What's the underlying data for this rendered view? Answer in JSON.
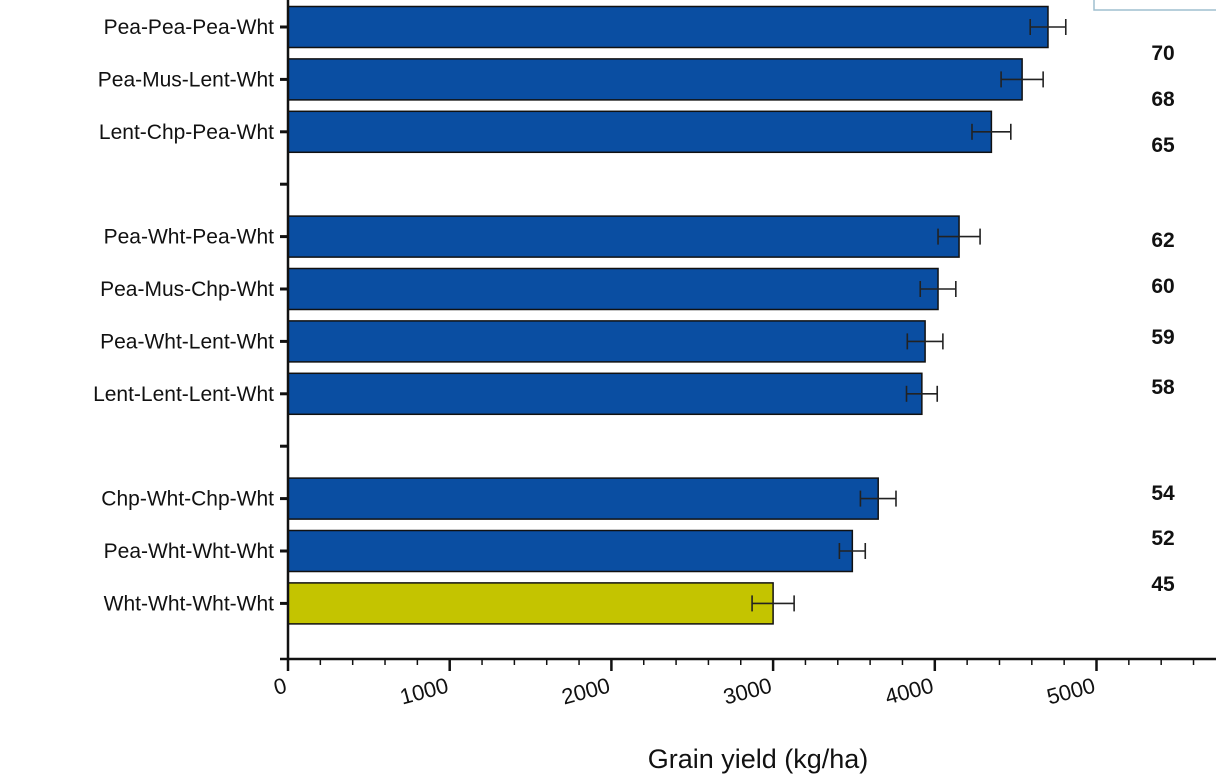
{
  "chart_data": {
    "type": "bar",
    "orientation": "horizontal",
    "xlabel": "Grain yield (kg/ha)",
    "xlim": [
      0,
      5800
    ],
    "xticks": [
      0,
      1000,
      2000,
      3000,
      4000,
      5000
    ],
    "grid": false,
    "categories": [
      "Pea-Pea-Pea-Wht",
      "Pea-Mus-Lent-Wht",
      "Lent-Chp-Pea-Wht",
      "Pea-Wht-Pea-Wht",
      "Pea-Mus-Chp-Wht",
      "Pea-Wht-Lent-Wht",
      "Lent-Lent-Lent-Wht",
      "Chp-Wht-Chp-Wht",
      "Pea-Wht-Wht-Wht",
      "Wht-Wht-Wht-Wht"
    ],
    "values": [
      4700,
      4540,
      4350,
      4150,
      4020,
      3940,
      3920,
      3650,
      3490,
      3000
    ],
    "errors": [
      110,
      130,
      120,
      130,
      110,
      110,
      95,
      110,
      80,
      130
    ],
    "colors": [
      "#0a4ea2",
      "#0a4ea2",
      "#0a4ea2",
      "#0a4ea2",
      "#0a4ea2",
      "#0a4ea2",
      "#0a4ea2",
      "#0a4ea2",
      "#0a4ea2",
      "#c4c400"
    ],
    "groups": [
      [
        0,
        1,
        2
      ],
      [
        3,
        4,
        5,
        6
      ],
      [
        7,
        8,
        9
      ]
    ],
    "side_labels": [
      "70",
      "68",
      "65",
      "62",
      "60",
      "59",
      "58",
      "54",
      "52",
      "45"
    ]
  }
}
